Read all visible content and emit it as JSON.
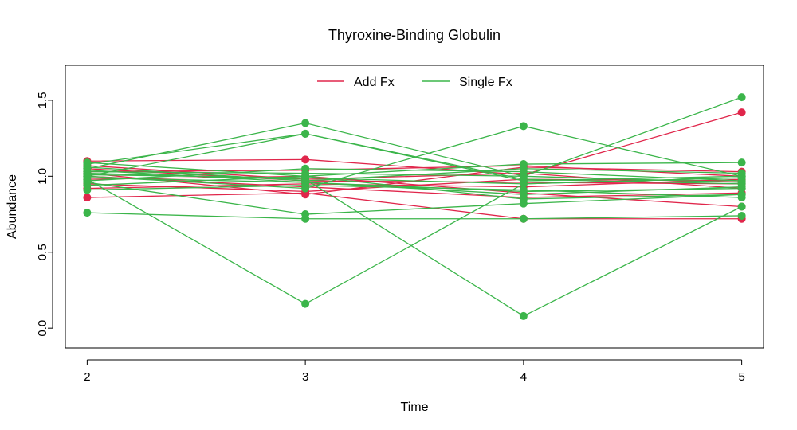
{
  "chart_data": {
    "type": "line",
    "title": "Thyroxine-Binding Globulin",
    "xlabel": "Time",
    "ylabel": "Abundance",
    "x": [
      2,
      3,
      4,
      5
    ],
    "x_ticks": [
      "2",
      "3",
      "4",
      "5"
    ],
    "y_ticks": [
      "0.0",
      "0.5",
      "1.0",
      "1.5"
    ],
    "y_tick_values": [
      0,
      0.5,
      1,
      1.5
    ],
    "xlim": [
      1.9,
      5.1
    ],
    "ylim": [
      -0.13,
      1.73
    ],
    "legend": {
      "placement": "top-center",
      "entries": [
        {
          "label": "Add Fx",
          "color": "#e0264b"
        },
        {
          "label": "Single Fx",
          "color": "#3bb54a"
        }
      ]
    },
    "groups": [
      {
        "name": "Add Fx",
        "color": "#e0264b",
        "lines": [
          [
            1.1,
            1.11,
            1.01,
            1.42
          ],
          [
            0.86,
            0.89,
            0.72,
            0.72
          ],
          [
            1.02,
            0.88,
            1.06,
            1.03
          ],
          [
            0.98,
            1.0,
            0.89,
            0.8
          ],
          [
            1.05,
            0.97,
            0.96,
            0.95
          ],
          [
            1.0,
            0.93,
            0.86,
            0.89
          ],
          [
            1.03,
            1.04,
            1.07,
            1.0
          ],
          [
            0.95,
            0.9,
            0.98,
            0.97
          ],
          [
            1.07,
            0.98,
            1.02,
            0.92
          ],
          [
            0.92,
            0.95,
            0.93,
            0.98
          ]
        ]
      },
      {
        "name": "Single Fx",
        "color": "#3bb54a",
        "lines": [
          [
            1.05,
            1.35,
            1.0,
            1.52
          ],
          [
            1.0,
            1.28,
            0.97,
            1.0
          ],
          [
            1.08,
            1.28,
            0.98,
            0.95
          ],
          [
            0.98,
            0.16,
            0.95,
            0.99
          ],
          [
            1.02,
            0.98,
            0.08,
            0.8
          ],
          [
            0.76,
            0.72,
            0.72,
            0.74
          ],
          [
            0.96,
            0.75,
            0.82,
            0.88
          ],
          [
            1.0,
            0.92,
            1.33,
            1.0
          ],
          [
            1.09,
            1.0,
            1.08,
            1.09
          ],
          [
            0.94,
            1.0,
            0.85,
            0.88
          ],
          [
            0.99,
            0.96,
            0.9,
            0.92
          ],
          [
            1.03,
            1.02,
            1.0,
            0.96
          ],
          [
            1.06,
            0.97,
            1.05,
            1.02
          ],
          [
            0.91,
            0.94,
            0.91,
            0.86
          ],
          [
            1.01,
            0.99,
            0.95,
            0.99
          ],
          [
            0.97,
            1.05,
            1.03,
            0.97
          ],
          [
            1.04,
            0.96,
            0.88,
            0.93
          ]
        ]
      }
    ]
  }
}
